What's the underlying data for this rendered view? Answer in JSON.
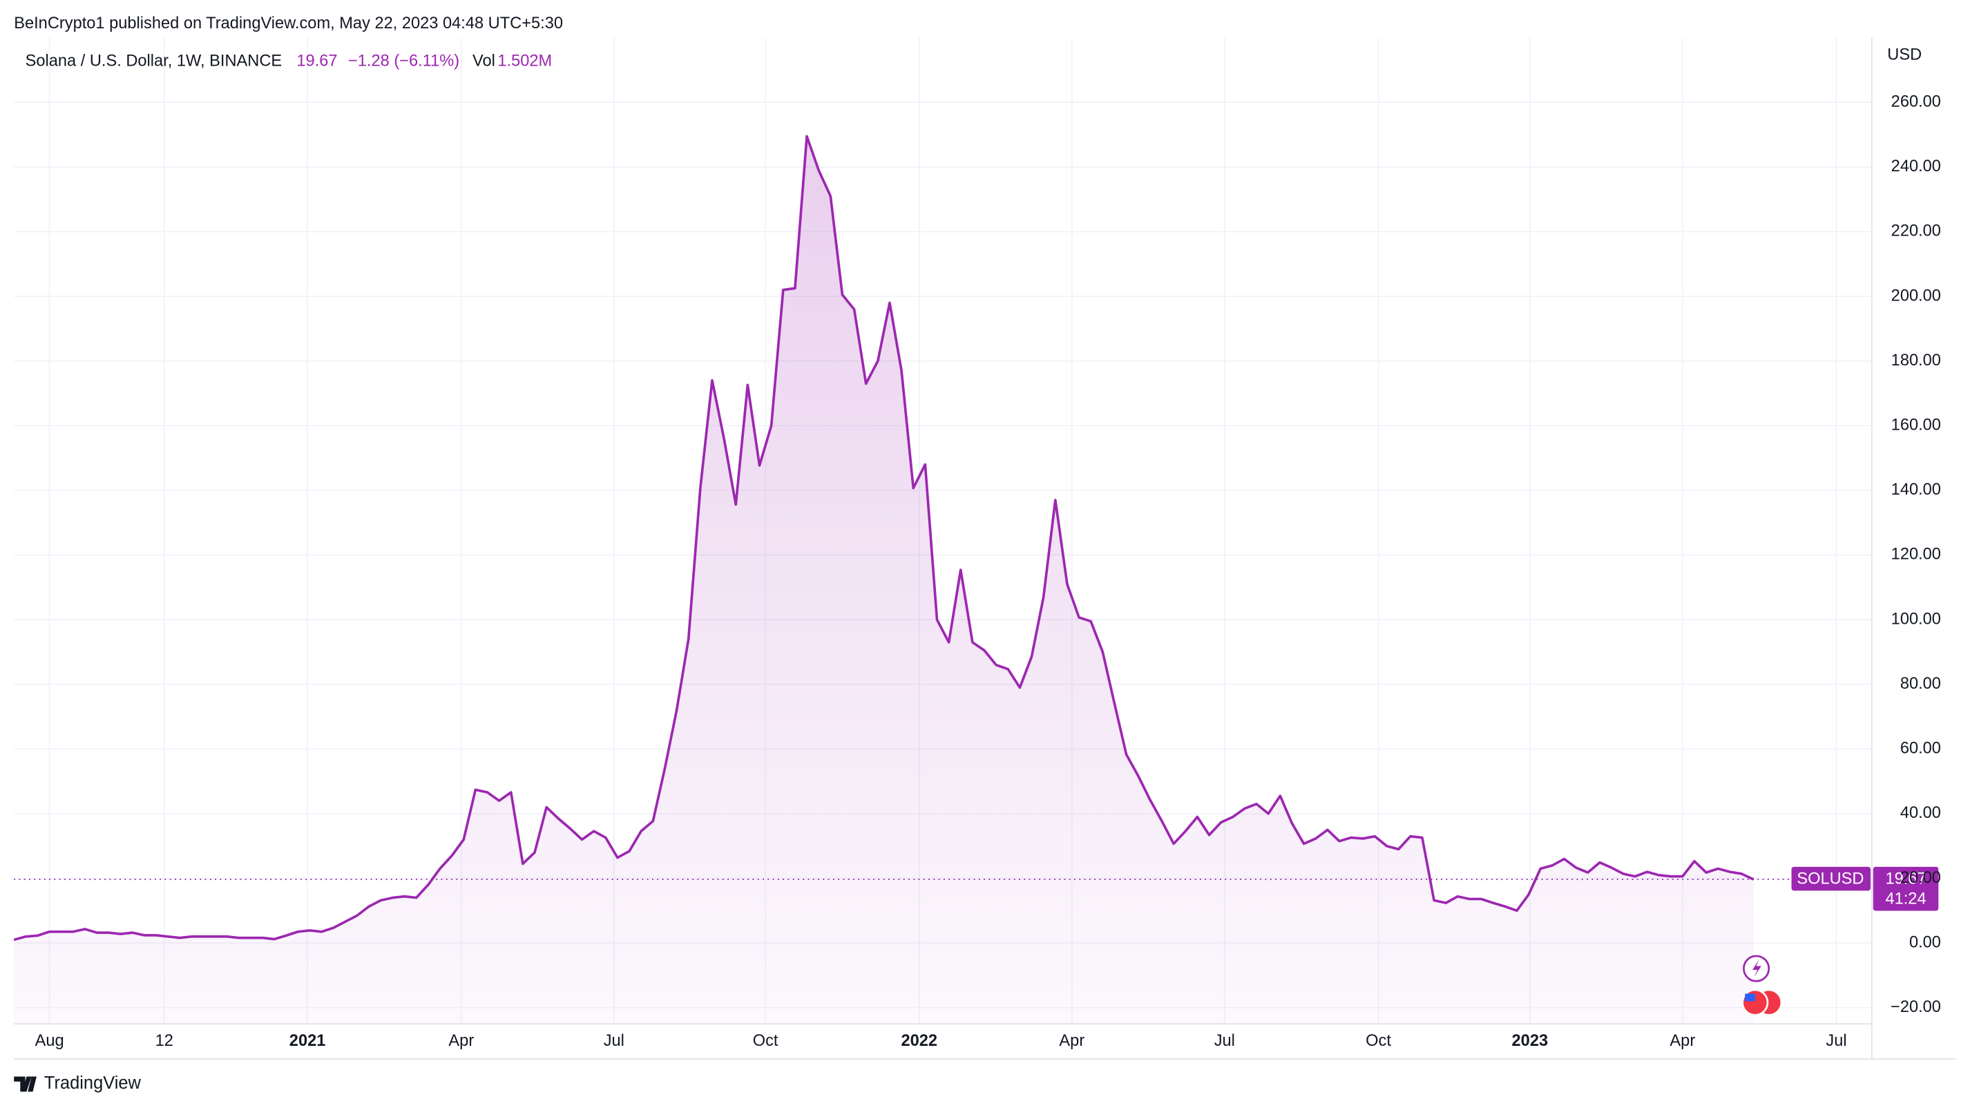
{
  "header": {
    "published": "BeInCrypto1 published on TradingView.com, May 22, 2023 04:48 UTC+5:30",
    "footer": "TradingView"
  },
  "chart_data": {
    "type": "area",
    "symbol": "Solana / U.S. Dollar, 1W, BINANCE",
    "last": "19.67",
    "change": "−1.28 (−6.11%)",
    "vol_label": "Vol",
    "vol": "1.502M",
    "currency": "USD",
    "ticker": "SOLUSD",
    "countdown": "41:24",
    "color": "#9c27b0",
    "grid": true,
    "values": [
      1,
      2,
      2.3,
      3.5,
      3.5,
      3.5,
      4.3,
      3.2,
      3.2,
      2.8,
      3.2,
      2.4,
      2.4,
      2,
      1.6,
      2,
      2,
      2,
      2,
      1.6,
      1.6,
      1.6,
      1.2,
      2.3,
      3.5,
      3.9,
      3.5,
      4.7,
      6.6,
      8.5,
      11.3,
      13.2,
      14,
      14.4,
      14,
      18,
      23,
      27,
      32,
      47.4,
      46.6,
      44,
      46.6,
      24.5,
      28,
      42,
      38.5,
      35.4,
      32,
      34.6,
      32.6,
      26.4,
      28.4,
      34.6,
      37.7,
      54,
      72,
      94,
      140.7,
      174,
      156,
      135.6,
      172.6,
      147.7,
      160,
      202,
      202.5,
      249.5,
      239,
      231,
      200.5,
      196,
      173,
      180,
      198,
      177,
      140.7,
      148,
      100,
      93,
      115.4,
      93,
      90.5,
      86,
      84.7,
      79,
      88.6,
      107,
      137,
      111,
      100.7,
      99.5,
      90,
      74,
      58.3,
      51.7,
      44.3,
      37.7,
      30.7,
      34.6,
      39,
      33.4,
      37.3,
      39,
      41.6,
      43,
      40,
      45.5,
      37,
      30.7,
      32.3,
      35,
      31.5,
      32.6,
      32.3,
      33,
      30,
      29,
      33,
      32.6,
      13.2,
      12.4,
      14.4,
      13.6,
      13.6,
      12.4,
      11.3,
      10,
      15,
      23,
      24,
      26,
      23.3,
      21.8,
      24.9,
      23.3,
      21.4,
      20.6,
      22,
      21,
      20.6,
      20.6,
      25.3,
      21.8,
      23,
      22,
      21.4,
      19.67
    ],
    "xlim": [
      0,
      157
    ],
    "xticks": [
      {
        "value": 3,
        "label": "Aug"
      },
      {
        "value": 12.7,
        "label": "12"
      },
      {
        "value": 24.8,
        "label": "2021"
      },
      {
        "value": 37.8,
        "label": "Apr"
      },
      {
        "value": 50.7,
        "label": "Jul"
      },
      {
        "value": 63.5,
        "label": "Oct"
      },
      {
        "value": 76.5,
        "label": "2022"
      },
      {
        "value": 89.4,
        "label": "Apr"
      },
      {
        "value": 102.3,
        "label": "Jul"
      },
      {
        "value": 115.3,
        "label": "Oct"
      },
      {
        "value": 128.1,
        "label": "2023"
      },
      {
        "value": 141,
        "label": "Apr"
      },
      {
        "value": 154,
        "label": "Jul"
      }
    ],
    "ylim": [
      -25,
      280
    ],
    "yticks": [
      {
        "value": -20,
        "label": "−20.00"
      },
      {
        "value": 0,
        "label": "0.00"
      },
      {
        "value": 20,
        "label": "20.00"
      },
      {
        "value": 40,
        "label": "40.00"
      },
      {
        "value": 60,
        "label": "60.00"
      },
      {
        "value": 80,
        "label": "80.00"
      },
      {
        "value": 100,
        "label": "100.00"
      },
      {
        "value": 120,
        "label": "120.00"
      },
      {
        "value": 140,
        "label": "140.00"
      },
      {
        "value": 160,
        "label": "160.00"
      },
      {
        "value": 180,
        "label": "180.00"
      },
      {
        "value": 200,
        "label": "200.00"
      },
      {
        "value": 220,
        "label": "220.00"
      },
      {
        "value": 240,
        "label": "240.00"
      },
      {
        "value": 260,
        "label": "260.00"
      }
    ]
  }
}
